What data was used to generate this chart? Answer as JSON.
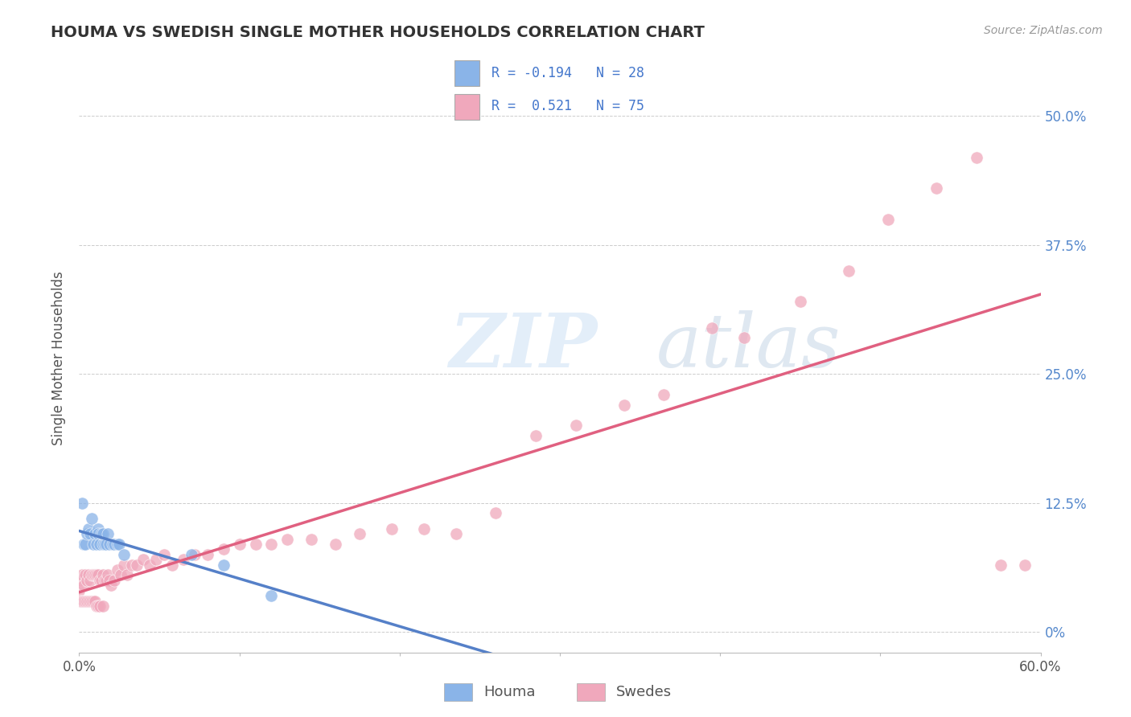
{
  "title": "HOUMA VS SWEDISH SINGLE MOTHER HOUSEHOLDS CORRELATION CHART",
  "source": "Source: ZipAtlas.com",
  "ylabel": "Single Mother Households",
  "xlim": [
    0.0,
    0.6
  ],
  "ylim": [
    -0.02,
    0.55
  ],
  "yticks": [
    0.0,
    0.125,
    0.25,
    0.375,
    0.5
  ],
  "ytick_labels": [
    "0%",
    "12.5%",
    "25.0%",
    "37.5%",
    "50.0%"
  ],
  "xtick_edge_left": "0.0%",
  "xtick_edge_right": "60.0%",
  "color_blue": "#8ab4e8",
  "color_pink": "#f0a8bc",
  "color_blue_line": "#5580c8",
  "color_pink_line": "#e06080",
  "color_ytick": "#5588cc",
  "watermark_zip": "ZIP",
  "watermark_atlas": "atlas",
  "legend_blue_label": "R = -0.194   N = 28",
  "legend_pink_label": "R =  0.521   N = 75",
  "houma_x": [
    0.002,
    0.003,
    0.004,
    0.005,
    0.006,
    0.007,
    0.008,
    0.009,
    0.01,
    0.011,
    0.012,
    0.012,
    0.013,
    0.014,
    0.015,
    0.015,
    0.016,
    0.017,
    0.018,
    0.019,
    0.021,
    0.022,
    0.024,
    0.025,
    0.028,
    0.07,
    0.09,
    0.12
  ],
  "houma_y": [
    0.125,
    0.085,
    0.085,
    0.095,
    0.1,
    0.095,
    0.11,
    0.085,
    0.095,
    0.085,
    0.1,
    0.095,
    0.085,
    0.095,
    0.085,
    0.095,
    0.085,
    0.085,
    0.095,
    0.085,
    0.085,
    0.085,
    0.085,
    0.085,
    0.075,
    0.075,
    0.065,
    0.035
  ],
  "swedes_x": [
    0.0,
    0.001,
    0.001,
    0.002,
    0.002,
    0.003,
    0.003,
    0.004,
    0.004,
    0.005,
    0.005,
    0.006,
    0.006,
    0.007,
    0.007,
    0.008,
    0.008,
    0.009,
    0.009,
    0.01,
    0.01,
    0.011,
    0.011,
    0.012,
    0.012,
    0.013,
    0.013,
    0.014,
    0.015,
    0.015,
    0.016,
    0.017,
    0.018,
    0.019,
    0.02,
    0.022,
    0.024,
    0.026,
    0.028,
    0.03,
    0.033,
    0.036,
    0.04,
    0.044,
    0.048,
    0.053,
    0.058,
    0.065,
    0.072,
    0.08,
    0.09,
    0.1,
    0.11,
    0.12,
    0.13,
    0.145,
    0.16,
    0.175,
    0.195,
    0.215,
    0.235,
    0.26,
    0.285,
    0.31,
    0.34,
    0.365,
    0.395,
    0.415,
    0.45,
    0.48,
    0.505,
    0.535,
    0.56,
    0.575,
    0.59
  ],
  "swedes_y": [
    0.04,
    0.05,
    0.03,
    0.055,
    0.03,
    0.045,
    0.03,
    0.055,
    0.03,
    0.05,
    0.03,
    0.055,
    0.03,
    0.05,
    0.03,
    0.055,
    0.03,
    0.055,
    0.03,
    0.055,
    0.03,
    0.055,
    0.025,
    0.055,
    0.025,
    0.05,
    0.025,
    0.05,
    0.055,
    0.025,
    0.05,
    0.05,
    0.055,
    0.05,
    0.045,
    0.05,
    0.06,
    0.055,
    0.065,
    0.055,
    0.065,
    0.065,
    0.07,
    0.065,
    0.07,
    0.075,
    0.065,
    0.07,
    0.075,
    0.075,
    0.08,
    0.085,
    0.085,
    0.085,
    0.09,
    0.09,
    0.085,
    0.095,
    0.1,
    0.1,
    0.095,
    0.115,
    0.19,
    0.2,
    0.22,
    0.23,
    0.295,
    0.285,
    0.32,
    0.35,
    0.4,
    0.43,
    0.46,
    0.065,
    0.065
  ]
}
